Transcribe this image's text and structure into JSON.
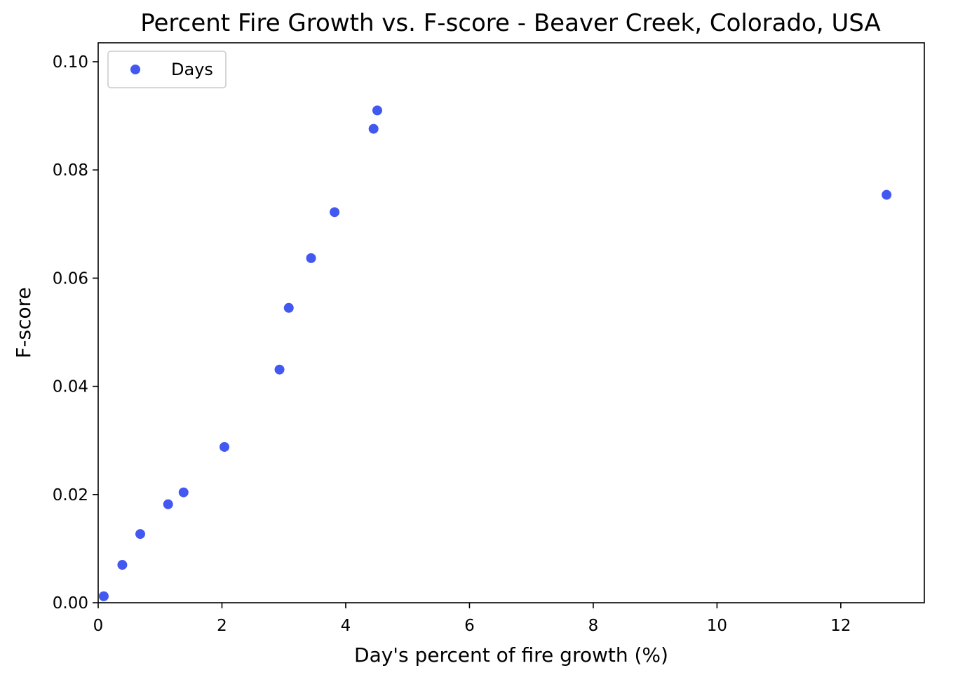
{
  "chart_data": {
    "type": "scatter",
    "title": "Percent Fire Growth vs. F-score - Beaver Creek, Colorado, USA",
    "xlabel": "Day's percent of fire growth (%)",
    "ylabel": "F-score",
    "xlim": [
      0,
      13.35
    ],
    "ylim": [
      0,
      0.1035
    ],
    "xticks": [
      {
        "value": 0,
        "label": "0"
      },
      {
        "value": 2,
        "label": "2"
      },
      {
        "value": 4,
        "label": "4"
      },
      {
        "value": 6,
        "label": "6"
      },
      {
        "value": 8,
        "label": "8"
      },
      {
        "value": 10,
        "label": "10"
      },
      {
        "value": 12,
        "label": "12"
      }
    ],
    "yticks": [
      {
        "value": 0.0,
        "label": "0.00"
      },
      {
        "value": 0.02,
        "label": "0.02"
      },
      {
        "value": 0.04,
        "label": "0.04"
      },
      {
        "value": 0.06,
        "label": "0.06"
      },
      {
        "value": 0.08,
        "label": "0.08"
      },
      {
        "value": 0.1,
        "label": "0.10"
      }
    ],
    "grid": false,
    "legend": {
      "position": "upper-left"
    },
    "series": [
      {
        "name": "Days",
        "color": "#4358f0",
        "x": [
          0.09,
          0.39,
          0.68,
          1.13,
          1.38,
          2.04,
          2.93,
          3.08,
          3.44,
          3.82,
          4.45,
          4.51,
          12.74
        ],
        "y": [
          0.0012,
          0.007,
          0.0127,
          0.0182,
          0.0204,
          0.0288,
          0.0431,
          0.0545,
          0.0637,
          0.0722,
          0.0876,
          0.091,
          0.0754
        ]
      }
    ]
  }
}
